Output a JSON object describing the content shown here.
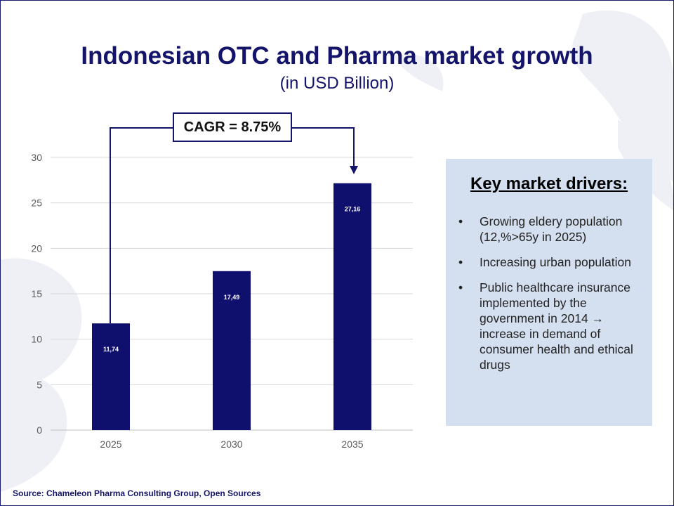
{
  "title": "Indonesian OTC and Pharma market growth",
  "subtitle": "(in USD Billion)",
  "cagr_label": "CAGR = 8.75%",
  "drivers": {
    "heading": "Key market drivers:",
    "items": [
      {
        "bullet": "•",
        "text": "Growing eldery population (12,%>65y in 2025)"
      },
      {
        "bullet": "•",
        "text": "Increasing urban population"
      },
      {
        "bullet": "•",
        "text": "Public healthcare insurance implemented by the government in 2014 → increase in demand of consumer health and ethical drugs"
      }
    ]
  },
  "source": "Source: Chameleon Pharma Consulting Group, Open Sources",
  "colors": {
    "bar": "#0f0f6e",
    "accent": "#14146b",
    "panel": "#d4dff0"
  },
  "chart_data": {
    "type": "bar",
    "categories": [
      "2025",
      "2030",
      "2035"
    ],
    "values": [
      11.74,
      17.49,
      27.16
    ],
    "value_labels": [
      "11,74",
      "17,49",
      "27,16"
    ],
    "yticks": [
      0,
      5,
      10,
      15,
      20,
      25,
      30
    ],
    "ylim": [
      0,
      30
    ],
    "grid": true,
    "title": "Indonesian OTC and Pharma market growth",
    "ylabel": "USD Billion",
    "xlabel": ""
  }
}
